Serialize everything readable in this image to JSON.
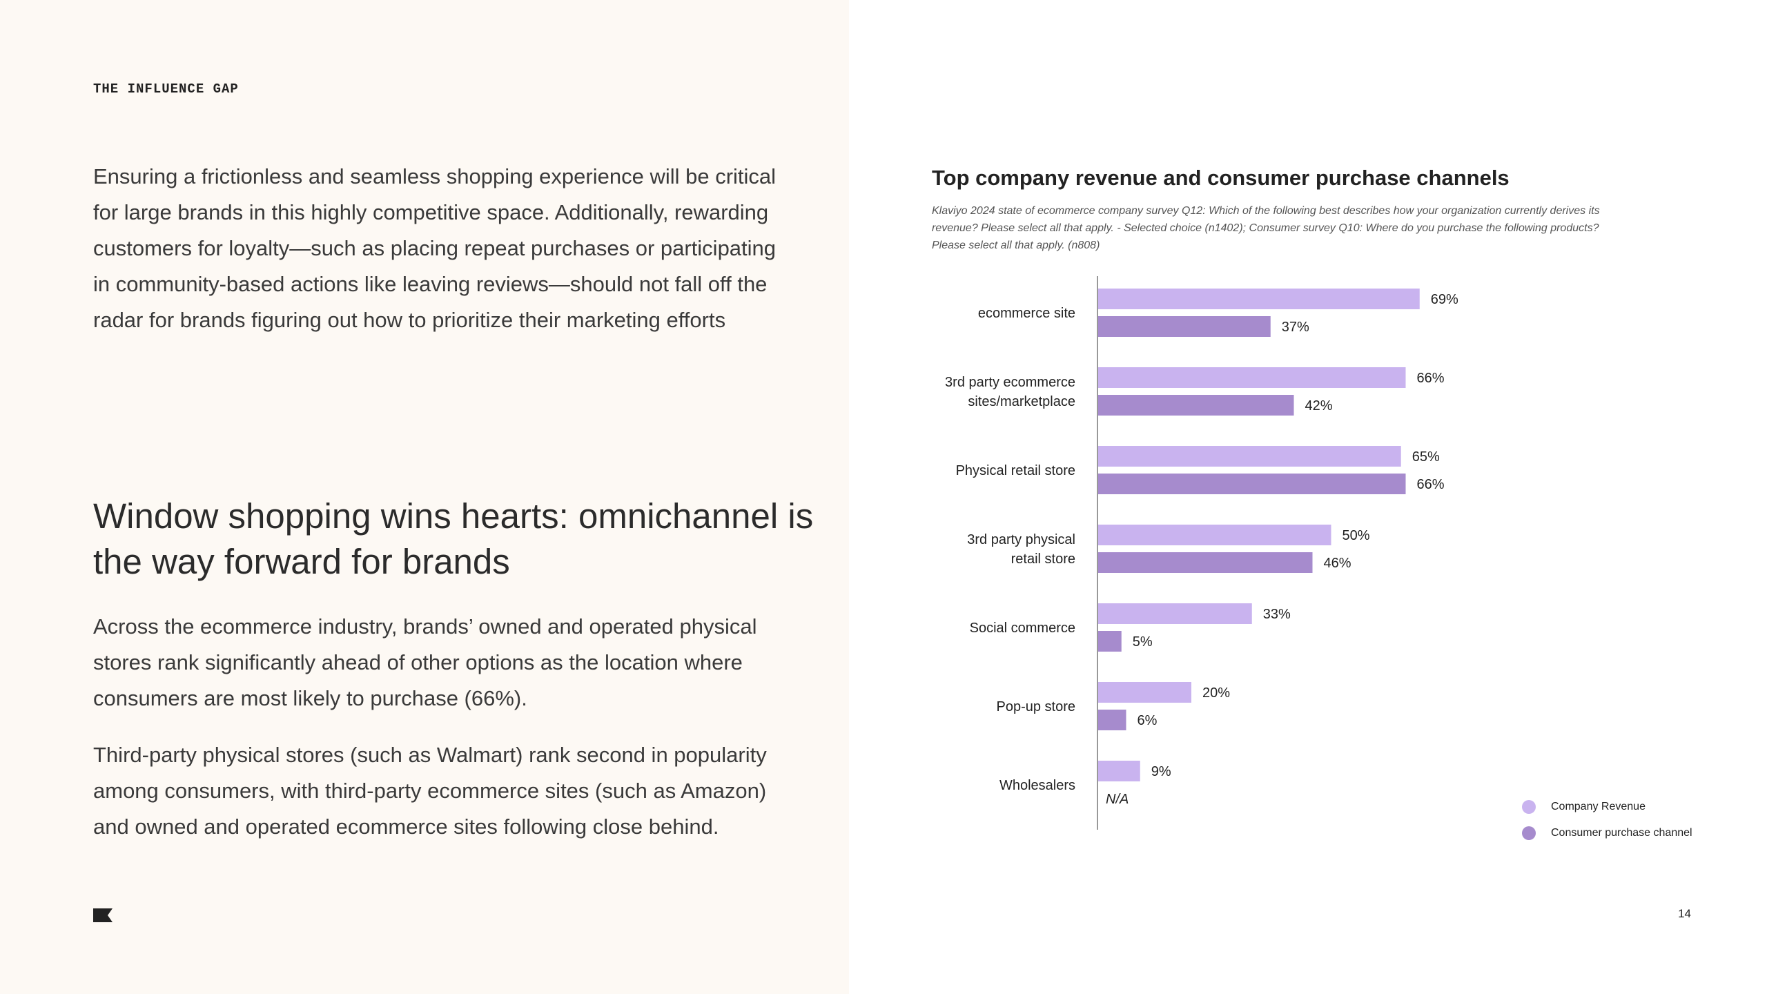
{
  "section_label": "THE INFLUENCE GAP",
  "intro_text": "Ensuring a frictionless and seamless shopping experience will be critical for large brands in this highly competitive space. Additionally, rewarding customers for loyalty—such as placing repeat purchases or participating in community-based actions like leaving reviews—should not fall off the radar for brands figuring out how to prioritize their marketing efforts",
  "heading": "Window shopping wins hearts: omnichannel is the way forward for brands",
  "body_paragraphs": [
    "Across the ecommerce industry, brands’ owned and operated physical stores rank significantly ahead of other options as the location where consumers are most likely to purchase (66%).",
    "Third-party physical stores (such as Walmart) rank second in popularity among consumers, with third-party ecommerce sites (such as Amazon) and owned and operated ecommerce sites following close behind."
  ],
  "page_number": "14",
  "logo_icon": "klaviyo-flag-icon",
  "colors": {
    "left_background": "#fdf9f4",
    "company_revenue": "#c9b3ef",
    "consumer_channel": "#a68bcd"
  },
  "chart_data": {
    "type": "bar",
    "orientation": "horizontal",
    "title": "Top company revenue and consumer purchase channels",
    "source": "Klaviyo 2024 state of ecommerce company survey Q12: Which of the following best describes how your organization currently derives its revenue? Please select all that apply. - Selected choice (n1402); Consumer survey Q10: Where do you purchase the following products? Please select all that apply. (n808)",
    "categories": [
      [
        "ecommerce site"
      ],
      [
        "3rd party ecommerce",
        "sites/marketplace"
      ],
      [
        "Physical retail store"
      ],
      [
        "3rd party physical",
        "retail store"
      ],
      [
        "Social commerce"
      ],
      [
        "Pop-up store"
      ],
      [
        "Wholesalers"
      ]
    ],
    "series": [
      {
        "name": "Company Revenue",
        "values": [
          69,
          66,
          65,
          50,
          33,
          20,
          9
        ],
        "labels": [
          "69%",
          "66%",
          "65%",
          "50%",
          "33%",
          "20%",
          "9%"
        ]
      },
      {
        "name": "Consumer purchase channel",
        "values": [
          37,
          42,
          66,
          46,
          5,
          6,
          null
        ],
        "labels": [
          "37%",
          "42%",
          "66%",
          "46%",
          "5%",
          "6%",
          "N/A"
        ]
      }
    ],
    "xlim": [
      0,
      100
    ],
    "legend_position": "bottom-right"
  }
}
